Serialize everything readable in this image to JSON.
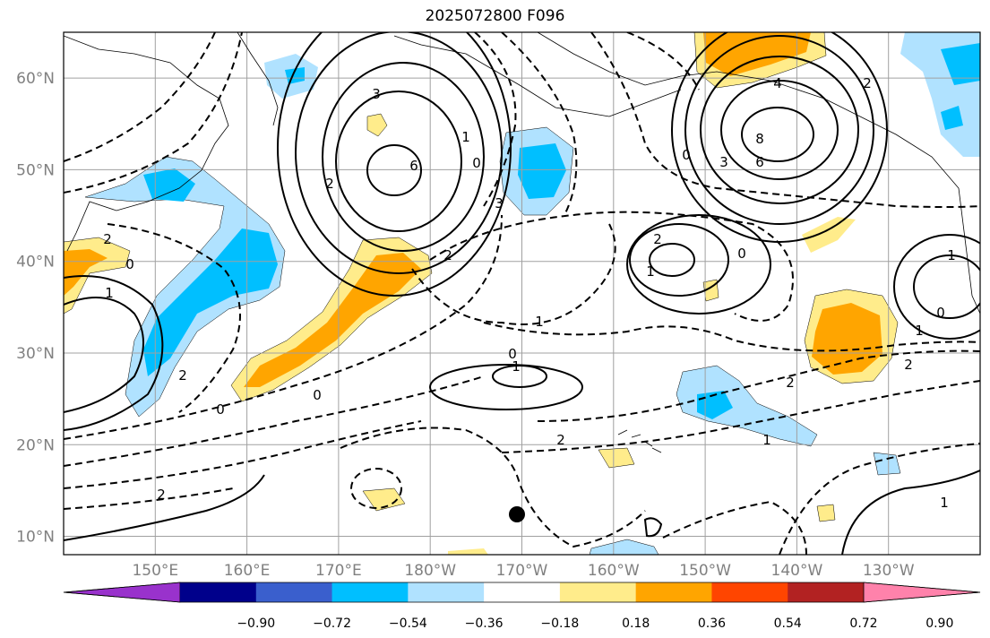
{
  "title": "2025072800 F096",
  "latitude_labels": [
    "60°N",
    "50°N",
    "40°N",
    "30°N",
    "20°N",
    "10°N"
  ],
  "longitude_labels": [
    "150°E",
    "160°E",
    "170°E",
    "180°W",
    "170°W",
    "160°W",
    "150°W",
    "140°W",
    "130°W"
  ],
  "map_extent": {
    "lon_min": 140,
    "lon_max": 240,
    "lat_min": 8,
    "lat_max": 65
  },
  "colorbar": {
    "tick_labels": [
      "−0.90",
      "−0.72",
      "−0.54",
      "−0.36",
      "−0.18",
      "0.18",
      "0.36",
      "0.54",
      "0.72",
      "0.90"
    ],
    "colors": [
      "#9932cc",
      "#00008b",
      "#3a5fcd",
      "#00bfff",
      "#b0e2ff",
      "#ffffff",
      "#ffec8b",
      "#ffa500",
      "#ff4500",
      "#b22222",
      "#ff82ab"
    ]
  },
  "contour_labels": [
    "3",
    "6",
    "2",
    "2",
    "0",
    "1",
    "2",
    "3",
    "1",
    "4",
    "8",
    "6",
    "3",
    "2",
    "0",
    "1",
    "0",
    "0",
    "1",
    "2",
    "2",
    "0",
    "2",
    "1",
    "0",
    "2",
    "1",
    "0",
    "2",
    "1",
    "1",
    "0",
    "1",
    "2"
  ],
  "marker": {
    "name": "black dot",
    "lon": 190,
    "lat": 12.5
  }
}
